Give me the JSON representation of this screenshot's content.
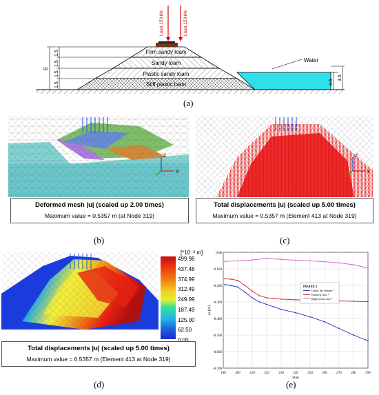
{
  "panel_a": {
    "loads": [
      "Load 150 kN",
      "Load 150 kN"
    ],
    "layers": [
      "Firm sandy loam",
      "Sandy loam",
      "Plastic sandy loam",
      "Stiff plastic loam"
    ],
    "water_label": "Water",
    "dim_total": "6",
    "dim_segments": [
      "1.5",
      "1.5",
      "1.5",
      "1.5"
    ],
    "dim_water_a": "2.5",
    "dim_water_b": "3.5",
    "caption": "(a)"
  },
  "panel_b": {
    "title": "Deformed mesh |u| (scaled up 2.00 times)",
    "value": "Maximum value = 0.5357 m (at Node 319)",
    "axis_z": "Z",
    "axis_x": "X",
    "caption": "(b)"
  },
  "panel_c": {
    "title": "Total displacements |u| (scaled up 5.00 times)",
    "value": "Maximum value = 0.5357 m (Element 413 at Node 319)",
    "axis_z": "Z",
    "axis_x": "X",
    "caption": "(c)"
  },
  "panel_d": {
    "title": "Total displacements |u| (scaled up 5.00 times)",
    "value": "Maximum value = 0.5357 m (Element 413 at Node 319)",
    "unit": "[*10⁻³ m]",
    "colorbar_ticks": [
      "499.98",
      "437.48",
      "374.99",
      "312.49",
      "249.99",
      "187.49",
      "125.00",
      "62.50",
      "0.00"
    ],
    "caption": "(d)"
  },
  "panel_e": {
    "caption": "(e)",
    "chart_data": {
      "type": "line",
      "title": "",
      "xlabel": "Step",
      "ylabel": "|u| [m]",
      "xlim": [
        190,
        290
      ],
      "ylim": [
        -0.7,
        0.0
      ],
      "x_ticks": [
        "190",
        "200",
        "210",
        "220",
        "230",
        "240",
        "250",
        "260",
        "270",
        "280",
        "290"
      ],
      "y_ticks": [
        "0.00",
        "-0.100",
        "-0.200",
        "-0.300",
        "-0.400",
        "-0.500",
        "-0.600",
        "-0.700"
      ],
      "legend_title": "PHASE 2",
      "legend_position": "center-right",
      "series": [
        {
          "name": "Under the sleeper *",
          "color": "#1f2fd0",
          "x": [
            191,
            195,
            200,
            205,
            210,
            215,
            220,
            225,
            230,
            240,
            250,
            260,
            270,
            280,
            290
          ],
          "y": [
            -0.195,
            -0.2,
            -0.21,
            -0.24,
            -0.275,
            -0.3,
            -0.315,
            -0.33,
            -0.345,
            -0.365,
            -0.39,
            -0.42,
            -0.46,
            -0.5,
            -0.535
          ]
        },
        {
          "name": "Earth by axis *",
          "color": "#d81f1f",
          "x": [
            191,
            195,
            200,
            205,
            210,
            215,
            220,
            225,
            230,
            240,
            250,
            260,
            270,
            280,
            290
          ],
          "y": [
            -0.16,
            -0.162,
            -0.17,
            -0.2,
            -0.235,
            -0.262,
            -0.275,
            -0.28,
            -0.283,
            -0.287,
            -0.29,
            -0.292,
            -0.294,
            -0.296,
            -0.298
          ]
        },
        {
          "name": "Right slope seat *",
          "color": "#d25ad2",
          "x": [
            191,
            200,
            210,
            220,
            230,
            240,
            250,
            260,
            270,
            280,
            290
          ],
          "y": [
            -0.055,
            -0.052,
            -0.046,
            -0.037,
            -0.043,
            -0.048,
            -0.052,
            -0.057,
            -0.064,
            -0.075,
            -0.095
          ]
        }
      ]
    }
  }
}
